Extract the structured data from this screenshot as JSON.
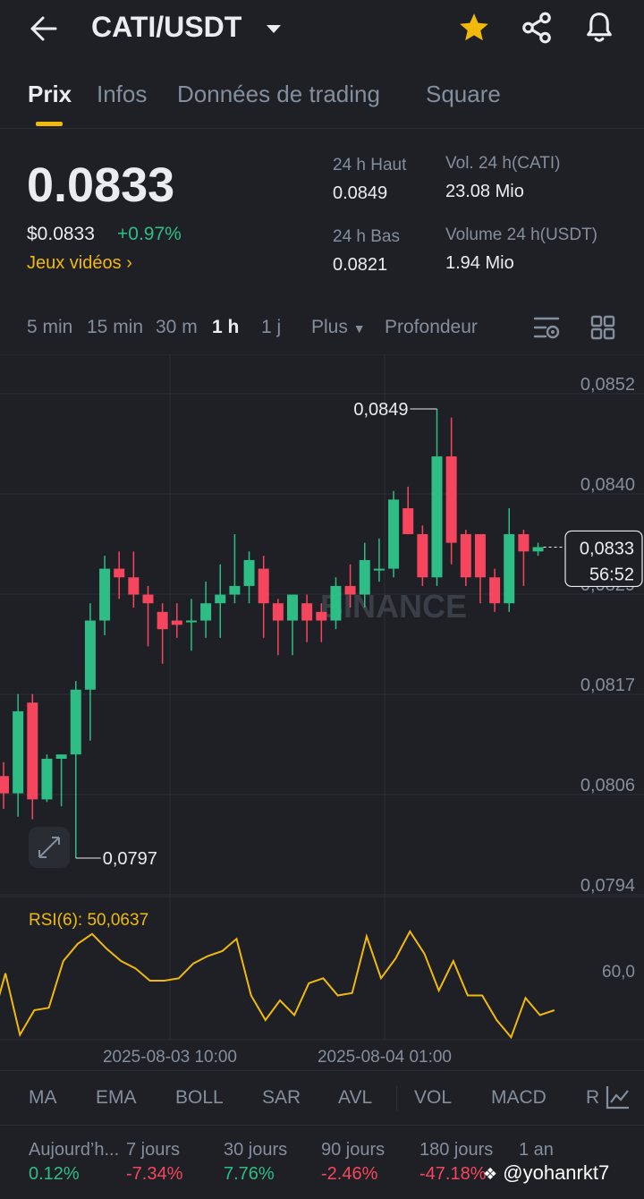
{
  "header": {
    "pair": "CATI/USDT"
  },
  "tabs": [
    "Prix",
    "Infos",
    "Données de trading",
    "Square"
  ],
  "ticker": {
    "price": "0.0833",
    "price_usd": "$0.0833",
    "change": "+0.97%",
    "category": "Jeux vidéos",
    "high_label": "24 h Haut",
    "high": "0.0849",
    "low_label": "24 h Bas",
    "low": "0.0821",
    "vol_base_label": "Vol. 24 h(CATI)",
    "vol_base": "23.08 Mio",
    "vol_quote_label": "Volume 24 h(USDT)",
    "vol_quote": "1.94 Mio"
  },
  "intervals": {
    "items": [
      "5 min",
      "15 min",
      "30 m",
      "1 h",
      "1 j"
    ],
    "active": "1 h",
    "more": "Plus",
    "depth": "Profondeur"
  },
  "chart_data": {
    "type": "candlestick",
    "y_ticks": [
      "0,0852",
      "0,0840",
      "0,0829",
      "0,0817",
      "0,0806",
      "0,0794"
    ],
    "high_annotation": "0,0849",
    "low_annotation": "0,0797",
    "current_price_tag": "0,0833",
    "countdown": "56:52",
    "x_ticks": [
      "2025-08-03 10:00",
      "2025-08-04 01:00"
    ],
    "watermark": "BINANCE",
    "candles": [
      {
        "o": 0.08065,
        "h": 0.08081,
        "l": 0.08027,
        "c": 0.08045
      },
      {
        "o": 0.08045,
        "h": 0.0816,
        "l": 0.08018,
        "c": 0.0814
      },
      {
        "o": 0.0815,
        "h": 0.0816,
        "l": 0.08015,
        "c": 0.08038
      },
      {
        "o": 0.08038,
        "h": 0.0809,
        "l": 0.08035,
        "c": 0.08085
      },
      {
        "o": 0.08085,
        "h": 0.0809,
        "l": 0.0803,
        "c": 0.0809
      },
      {
        "o": 0.0809,
        "h": 0.08175,
        "l": 0.0797,
        "c": 0.08165
      },
      {
        "o": 0.08165,
        "h": 0.08265,
        "l": 0.08106,
        "c": 0.08245
      },
      {
        "o": 0.08245,
        "h": 0.0832,
        "l": 0.08228,
        "c": 0.08305
      },
      {
        "o": 0.08305,
        "h": 0.08325,
        "l": 0.0827,
        "c": 0.08295
      },
      {
        "o": 0.08295,
        "h": 0.08325,
        "l": 0.0826,
        "c": 0.08275
      },
      {
        "o": 0.08275,
        "h": 0.08285,
        "l": 0.08215,
        "c": 0.08265
      },
      {
        "o": 0.08255,
        "h": 0.08265,
        "l": 0.08195,
        "c": 0.08235
      },
      {
        "o": 0.08245,
        "h": 0.08265,
        "l": 0.08225,
        "c": 0.0824
      },
      {
        "o": 0.08245,
        "h": 0.0827,
        "l": 0.0821,
        "c": 0.08245
      },
      {
        "o": 0.08245,
        "h": 0.0829,
        "l": 0.08225,
        "c": 0.08265
      },
      {
        "o": 0.08265,
        "h": 0.0831,
        "l": 0.08225,
        "c": 0.08275
      },
      {
        "o": 0.08275,
        "h": 0.08345,
        "l": 0.08265,
        "c": 0.08285
      },
      {
        "o": 0.08285,
        "h": 0.08325,
        "l": 0.08265,
        "c": 0.08315
      },
      {
        "o": 0.08305,
        "h": 0.0832,
        "l": 0.08225,
        "c": 0.08265
      },
      {
        "o": 0.08265,
        "h": 0.0827,
        "l": 0.08205,
        "c": 0.08245
      },
      {
        "o": 0.08245,
        "h": 0.08275,
        "l": 0.08205,
        "c": 0.08275
      },
      {
        "o": 0.08265,
        "h": 0.08275,
        "l": 0.0822,
        "c": 0.08245
      },
      {
        "o": 0.08255,
        "h": 0.08265,
        "l": 0.0822,
        "c": 0.08245
      },
      {
        "o": 0.08245,
        "h": 0.08295,
        "l": 0.08235,
        "c": 0.08285
      },
      {
        "o": 0.08285,
        "h": 0.0831,
        "l": 0.0826,
        "c": 0.08275
      },
      {
        "o": 0.08275,
        "h": 0.08335,
        "l": 0.0826,
        "c": 0.08315
      },
      {
        "o": 0.08305,
        "h": 0.0834,
        "l": 0.0829,
        "c": 0.08305
      },
      {
        "o": 0.08305,
        "h": 0.08395,
        "l": 0.08295,
        "c": 0.08385
      },
      {
        "o": 0.08375,
        "h": 0.084,
        "l": 0.08345,
        "c": 0.08345
      },
      {
        "o": 0.08345,
        "h": 0.08355,
        "l": 0.08285,
        "c": 0.08295
      },
      {
        "o": 0.08295,
        "h": 0.0849,
        "l": 0.08285,
        "c": 0.08435
      },
      {
        "o": 0.08435,
        "h": 0.0848,
        "l": 0.0831,
        "c": 0.08335
      },
      {
        "o": 0.08345,
        "h": 0.0835,
        "l": 0.08285,
        "c": 0.08295
      },
      {
        "o": 0.08345,
        "h": 0.0834,
        "l": 0.08265,
        "c": 0.08295
      },
      {
        "o": 0.08295,
        "h": 0.08305,
        "l": 0.08255,
        "c": 0.08265
      },
      {
        "o": 0.08265,
        "h": 0.08375,
        "l": 0.08255,
        "c": 0.08345
      },
      {
        "o": 0.08345,
        "h": 0.0835,
        "l": 0.08285,
        "c": 0.08325
      },
      {
        "o": 0.08325,
        "h": 0.08335,
        "l": 0.0832,
        "c": 0.0833
      }
    ],
    "rsi": {
      "label": "RSI(6): 50,0637",
      "level_label": "60,0",
      "values": [
        34,
        55,
        30,
        40,
        41,
        60,
        67,
        71,
        65,
        60,
        57,
        52,
        52,
        53,
        59,
        62,
        64,
        69,
        46,
        36,
        44,
        38,
        51,
        53,
        46,
        47,
        70,
        53,
        61,
        72,
        63,
        48,
        60,
        46,
        46,
        36,
        29,
        45,
        38,
        40
      ]
    }
  },
  "indicators": [
    "MA",
    "EMA",
    "BOLL",
    "SAR",
    "AVL",
    "VOL",
    "MACD",
    "R"
  ],
  "performance": [
    {
      "label": "Aujourd’h...",
      "value": "0.12%",
      "dir": "pos"
    },
    {
      "label": "7 jours",
      "value": "-7.34%",
      "dir": "neg"
    },
    {
      "label": "30 jours",
      "value": "7.76%",
      "dir": "pos"
    },
    {
      "label": "90 jours",
      "value": "-2.46%",
      "dir": "neg"
    },
    {
      "label": "180 jours",
      "value": "-47.18%",
      "dir": "neg"
    },
    {
      "label": "1 an",
      "value": "",
      "dir": "pos"
    }
  ],
  "watermark_user": "@yohanrkt7",
  "colors": {
    "up": "#2ebd85",
    "down": "#f6465d",
    "accent": "#f0b90b",
    "rsi": "#f0b90b"
  }
}
